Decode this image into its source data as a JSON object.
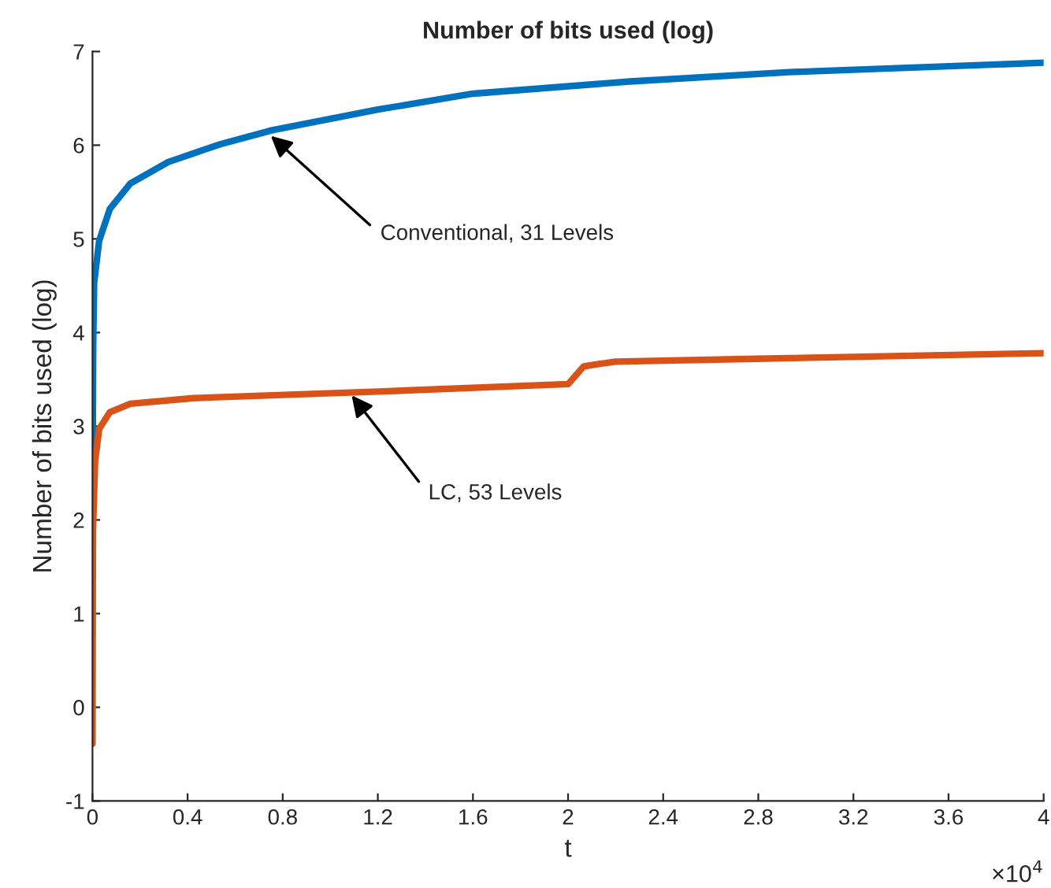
{
  "chart_data": {
    "type": "line",
    "title": "Number of bits used (log)",
    "xlabel": "t",
    "ylabel": "Number of bits used (log)",
    "xlim": [
      0,
      4
    ],
    "ylim": [
      -1,
      7
    ],
    "xticks": [
      0,
      0.4,
      0.8,
      1.2,
      1.6,
      2,
      2.4,
      2.8,
      3.2,
      3.6,
      4
    ],
    "yticks": [
      -1,
      0,
      1,
      2,
      3,
      4,
      5,
      6,
      7
    ],
    "grid": false,
    "marker": "none",
    "line_style": "solid",
    "annotations": [
      {
        "text": "Conventional, 31 Levels",
        "x": 0.75,
        "y": 6.1
      },
      {
        "text": "LC, 53 Levels",
        "x": 1.09,
        "y": 3.33
      },
      "×10$^{4}$"
    ],
    "series": [
      {
        "color": "#0072bd",
        "x": [
          0,
          0.003,
          0.007,
          0.028,
          0.073,
          0.159,
          0.318,
          0.537,
          0.756,
          1.2,
          1.6,
          2.26,
          2.93,
          4.0
        ],
        "values": [
          2.29,
          3.86,
          4.53,
          4.98,
          5.32,
          5.59,
          5.82,
          6.01,
          6.16,
          6.38,
          6.55,
          6.68,
          6.78,
          6.88
        ]
      },
      {
        "color": "#d95319",
        "x": [
          0,
          0.001,
          0.002,
          0.011,
          0.028,
          0.073,
          0.159,
          0.424,
          1.2,
          2.0,
          2.066,
          2.198,
          2.79,
          4.0
        ],
        "values": [
          -0.39,
          1.05,
          1.89,
          2.63,
          2.97,
          3.15,
          3.24,
          3.3,
          3.37,
          3.45,
          3.64,
          3.69,
          3.72,
          3.78
        ]
      }
    ]
  }
}
